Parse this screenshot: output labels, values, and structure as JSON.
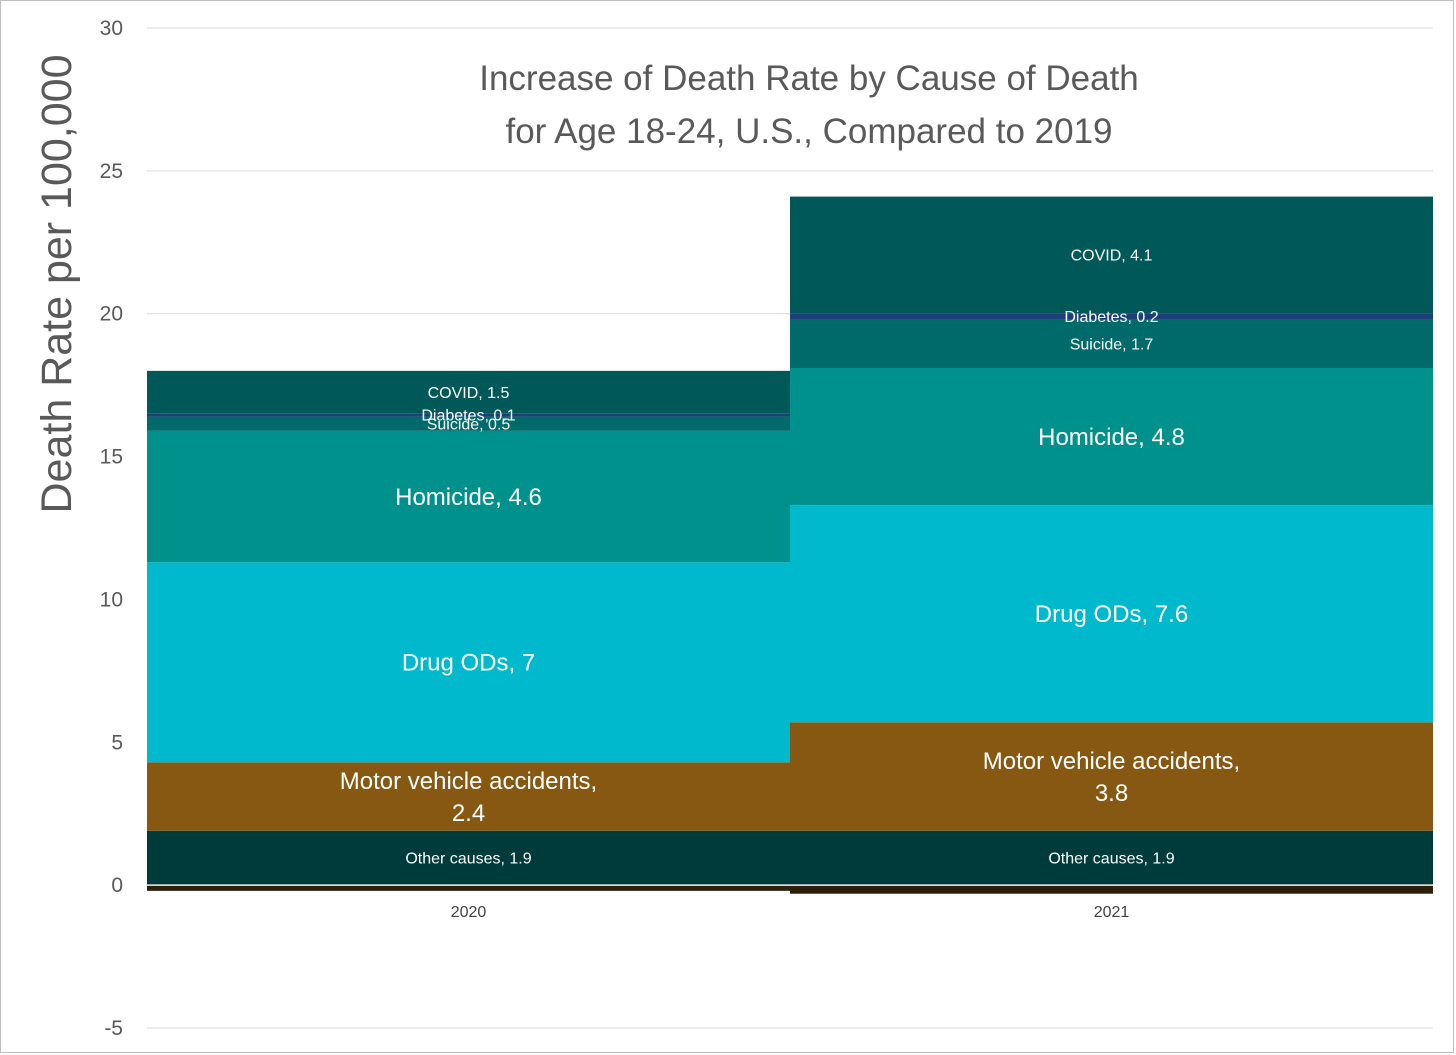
{
  "chart_data": {
    "type": "bar",
    "stacked": true,
    "title": "Increase of Death Rate by Cause of Death",
    "subtitle": "for Age 18-24, U.S., Compared to 2019",
    "xlabel": "",
    "ylabel": "Death Rate per 100,000",
    "ylim": [
      -5,
      30
    ],
    "yticks": [
      -5,
      0,
      5,
      10,
      15,
      20,
      25,
      30
    ],
    "grid": true,
    "categories": [
      "2020",
      "2021"
    ],
    "series": [
      {
        "name": "Other causes",
        "color": "#003b3b",
        "values": [
          1.9,
          1.9
        ],
        "labels": [
          "Other causes, 1.9",
          "Other causes, 1.9"
        ],
        "label_size": "small"
      },
      {
        "name": "Motor vehicle accidents",
        "color": "#865811",
        "values": [
          2.4,
          3.8
        ],
        "labels": [
          "Motor vehicle accidents,|2.4",
          "Motor vehicle accidents,|3.8"
        ],
        "label_size": "large"
      },
      {
        "name": "Drug ODs",
        "color": "#00b9cd",
        "values": [
          7,
          7.6
        ],
        "labels": [
          "Drug ODs, 7",
          "Drug ODs, 7.6"
        ],
        "label_size": "large"
      },
      {
        "name": "Homicide",
        "color": "#00918d",
        "values": [
          4.6,
          4.8
        ],
        "labels": [
          "Homicide, 4.6",
          "Homicide, 4.8"
        ],
        "label_size": "large"
      },
      {
        "name": "Suicide",
        "color": "#006a6a",
        "values": [
          0.5,
          1.7
        ],
        "labels": [
          "Suicide, 0.5",
          "Suicide, 1.7"
        ],
        "label_size": "small"
      },
      {
        "name": "Diabetes",
        "color": "#1d3e78",
        "values": [
          0.1,
          0.2
        ],
        "labels": [
          "Diabetes, 0.1",
          "Diabetes, 0.2"
        ],
        "label_size": "small"
      },
      {
        "name": "COVID",
        "color": "#005858",
        "values": [
          1.5,
          4.1
        ],
        "labels": [
          "COVID, 1.5",
          "COVID, 4.1"
        ],
        "label_size": "small"
      }
    ],
    "negative_segments": [
      {
        "category": "2020",
        "value": -0.2,
        "color": "#2e1f0c"
      },
      {
        "category": "2021",
        "value": -0.3,
        "color": "#2e1f0c"
      }
    ]
  }
}
